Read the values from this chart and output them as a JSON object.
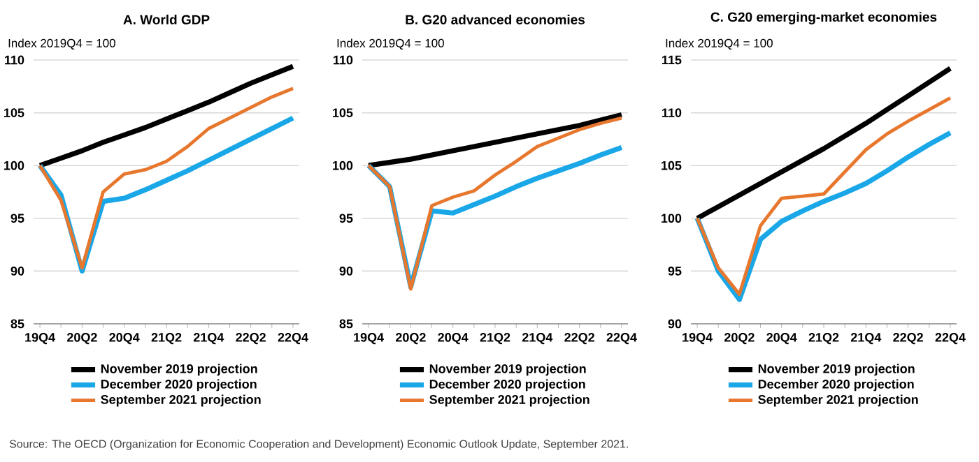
{
  "chart_data": [
    {
      "type": "line",
      "title": "A. World GDP",
      "ylabel": "Index 2019Q4 = 100",
      "categories": [
        "19Q4",
        null,
        "20Q2",
        null,
        "20Q4",
        null,
        "21Q2",
        null,
        "21Q4",
        null,
        "22Q2",
        null,
        "22Q4"
      ],
      "series": [
        {
          "name": "November 2019 projection",
          "color": "#000000",
          "values": [
            100,
            100.7,
            101.4,
            102.2,
            102.9,
            103.6,
            104.4,
            105.2,
            106.0,
            106.9,
            107.8,
            108.6,
            109.4
          ]
        },
        {
          "name": "December 2020 projection",
          "color": "#1aa7e8",
          "values": [
            100,
            97.2,
            90.0,
            96.6,
            96.9,
            97.7,
            98.6,
            99.5,
            100.5,
            101.5,
            102.5,
            103.5,
            104.5
          ]
        },
        {
          "name": "September 2021 projection",
          "color": "#e8772e",
          "values": [
            100,
            96.7,
            90.3,
            97.5,
            99.2,
            99.6,
            100.4,
            101.8,
            103.5,
            104.5,
            105.5,
            106.5,
            107.3
          ]
        }
      ],
      "ylim": [
        85,
        110
      ],
      "yticks": [
        85,
        90,
        95,
        100,
        105,
        110
      ],
      "grid": "y",
      "legend": "bottom",
      "annotations": [
        "Source: The OECD (Organization for Economic Cooperation and Development) Economic Outlook Update, September 2021."
      ]
    },
    {
      "type": "line",
      "title": "B. G20 advanced economies",
      "ylabel": "Index 2019Q4 = 100",
      "categories": [
        "19Q4",
        null,
        "20Q2",
        null,
        "20Q4",
        null,
        "21Q2",
        null,
        "21Q4",
        null,
        "22Q2",
        null,
        "22Q4"
      ],
      "series": [
        {
          "name": "November 2019 projection",
          "color": "#000000",
          "values": [
            100,
            100.3,
            100.6,
            101.0,
            101.4,
            101.8,
            102.2,
            102.6,
            103.0,
            103.4,
            103.8,
            104.3,
            104.8
          ]
        },
        {
          "name": "December 2020 projection",
          "color": "#1aa7e8",
          "values": [
            100,
            98.0,
            88.5,
            95.7,
            95.5,
            96.3,
            97.1,
            98.0,
            98.8,
            99.5,
            100.2,
            101.0,
            101.7
          ]
        },
        {
          "name": "September 2021 projection",
          "color": "#e8772e",
          "values": [
            100,
            98.0,
            88.3,
            96.2,
            97.0,
            97.6,
            99.1,
            100.4,
            101.8,
            102.6,
            103.4,
            104.0,
            104.5
          ]
        }
      ],
      "ylim": [
        85,
        110
      ],
      "yticks": [
        85,
        90,
        95,
        100,
        105,
        110
      ],
      "grid": "y",
      "legend": "bottom"
    },
    {
      "type": "line",
      "title": "C. G20 emerging-market economies",
      "ylabel": "Index 2019Q4 = 100",
      "categories": [
        "19Q4",
        null,
        "20Q2",
        null,
        "20Q4",
        null,
        "21Q2",
        null,
        "21Q4",
        null,
        "22Q2",
        null,
        "22Q4"
      ],
      "series": [
        {
          "name": "November 2019 projection",
          "color": "#000000",
          "values": [
            100,
            101.1,
            102.2,
            103.3,
            104.4,
            105.5,
            106.6,
            107.8,
            109.0,
            110.3,
            111.6,
            112.9,
            114.2
          ]
        },
        {
          "name": "December 2020 projection",
          "color": "#1aa7e8",
          "values": [
            100,
            95.0,
            92.3,
            98.0,
            99.7,
            100.7,
            101.6,
            102.4,
            103.3,
            104.5,
            105.8,
            107.0,
            108.1
          ]
        },
        {
          "name": "September 2021 projection",
          "color": "#e8772e",
          "values": [
            100,
            95.3,
            92.8,
            99.3,
            101.9,
            102.1,
            102.3,
            104.4,
            106.5,
            108.0,
            109.2,
            110.3,
            111.4
          ]
        }
      ],
      "ylim": [
        90,
        115
      ],
      "yticks": [
        90,
        95,
        100,
        105,
        110,
        115
      ],
      "grid": "y",
      "legend": "bottom"
    }
  ]
}
